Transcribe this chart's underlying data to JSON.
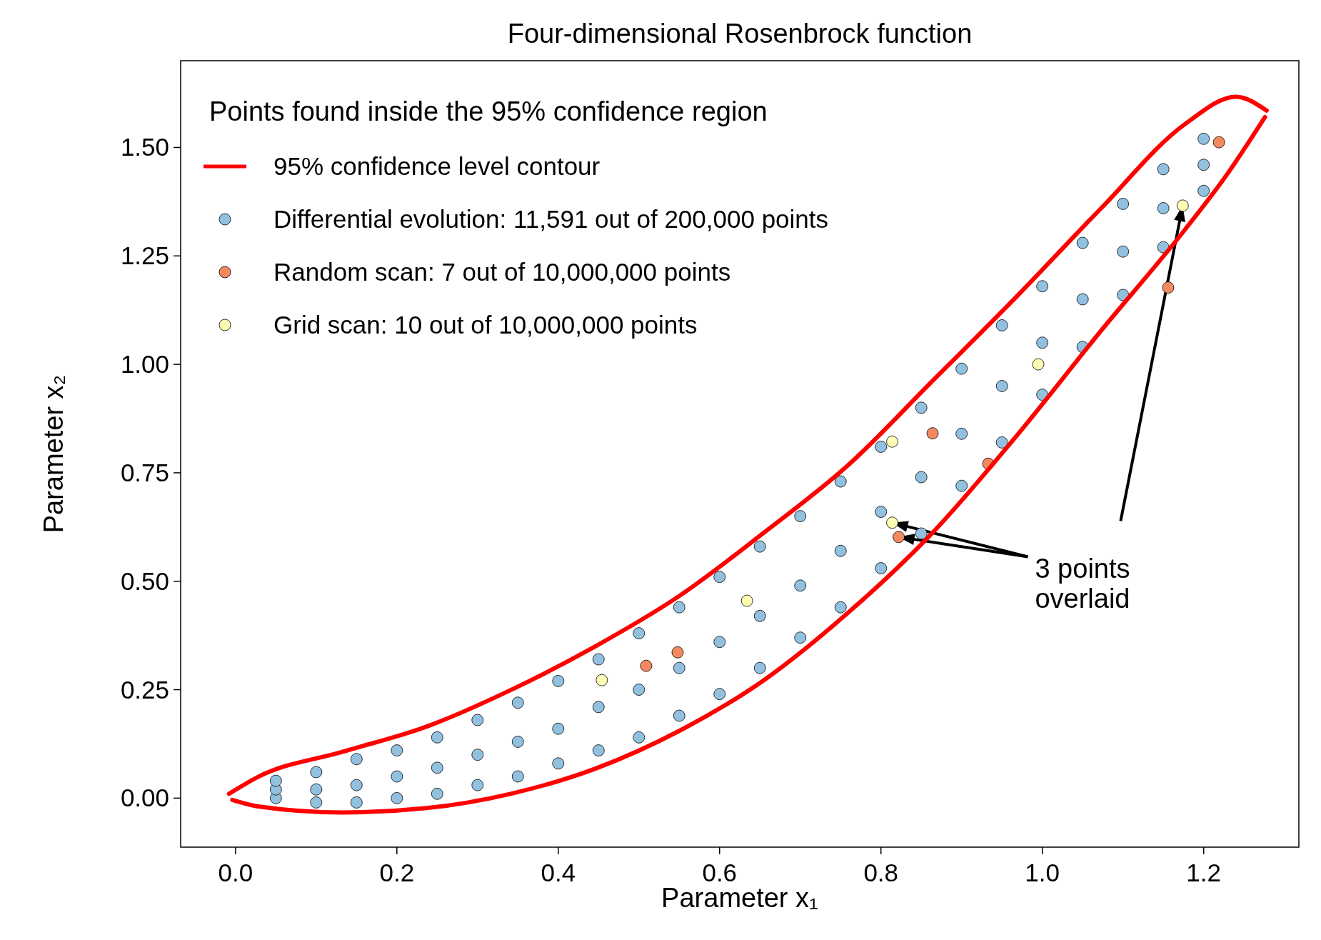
{
  "chart_data": {
    "type": "scatter",
    "title": "Four-dimensional Rosenbrock function",
    "xlabel": "Parameter x₁",
    "ylabel": "Parameter x₂",
    "legend_title": "Points found inside the 95% confidence region",
    "legend": "top left",
    "marker": "circle",
    "grid": false,
    "xlim": [
      -0.068,
      1.318
    ],
    "xticks": [
      {
        "value": 0,
        "label": "0.0"
      },
      {
        "value": 0.2,
        "label": "0.2"
      },
      {
        "value": 0.4,
        "label": "0.4"
      },
      {
        "value": 0.6,
        "label": "0.6"
      },
      {
        "value": 0.8,
        "label": "0.8"
      },
      {
        "value": 1,
        "label": "1.0"
      },
      {
        "value": 1.2,
        "label": "1.2"
      }
    ],
    "ylim": [
      -0.113,
      1.7
    ],
    "yticks": [
      {
        "value": 0,
        "label": "0.00"
      },
      {
        "value": 0.25,
        "label": "0.25"
      },
      {
        "value": 0.5,
        "label": "0.50"
      },
      {
        "value": 0.75,
        "label": "0.75"
      },
      {
        "value": 1,
        "label": "1.00"
      },
      {
        "value": 1.25,
        "label": "1.25"
      },
      {
        "value": 1.5,
        "label": "1.50"
      }
    ],
    "series": [
      {
        "name": "Differential evolution: 11,591 out of 200,000 points",
        "color": "#92c1e0",
        "x": [
          0.05,
          0.05,
          0.05,
          0.1,
          0.1,
          0.1,
          0.15,
          0.15,
          0.15,
          0.2,
          0.2,
          0.2,
          0.25,
          0.25,
          0.25,
          0.3,
          0.3,
          0.3,
          0.35,
          0.35,
          0.35,
          0.4,
          0.4,
          0.4,
          0.45,
          0.45,
          0.45,
          0.5,
          0.5,
          0.5,
          0.55,
          0.55,
          0.55,
          0.6,
          0.6,
          0.6,
          0.65,
          0.65,
          0.65,
          0.7,
          0.7,
          0.7,
          0.75,
          0.75,
          0.75,
          0.8,
          0.8,
          0.8,
          0.85,
          0.85,
          0.85,
          0.9,
          0.9,
          0.9,
          0.95,
          0.95,
          0.95,
          1,
          1,
          1,
          1.05,
          1.05,
          1.05,
          1.1,
          1.1,
          1.1,
          1.15,
          1.15,
          1.15,
          1.2,
          1.2,
          1.2
        ],
        "values": [
          0,
          0.02,
          0.04,
          -0.01,
          0.02,
          0.06,
          -0.01,
          0.03,
          0.09,
          0,
          0.05,
          0.11,
          0.01,
          0.07,
          0.14,
          0.03,
          0.1,
          0.18,
          0.05,
          0.13,
          0.22,
          0.08,
          0.16,
          0.27,
          0.11,
          0.21,
          0.32,
          0.14,
          0.25,
          0.38,
          0.19,
          0.3,
          0.44,
          0.24,
          0.36,
          0.51,
          0.3,
          0.42,
          0.58,
          0.37,
          0.49,
          0.65,
          0.44,
          0.57,
          0.73,
          0.53,
          0.66,
          0.81,
          0.61,
          0.74,
          0.9,
          0.72,
          0.84,
          0.99,
          0.82,
          0.95,
          1.09,
          0.93,
          1.05,
          1.18,
          1.04,
          1.15,
          1.28,
          1.16,
          1.26,
          1.37,
          1.27,
          1.36,
          1.45,
          1.4,
          1.46,
          1.52
        ]
      },
      {
        "name": "95% confidence level contour",
        "type": "line",
        "marker": "none",
        "color": "#ff0000",
        "x": [
          -0.008,
          0.028,
          0.133,
          0.237,
          0.341,
          0.446,
          0.55,
          0.655,
          0.759,
          0.864,
          0.968,
          1.073,
          1.177,
          1.24,
          1.278
        ],
        "values": [
          0.01,
          0.049,
          0.107,
          0.165,
          0.249,
          0.35,
          0.466,
          0.612,
          0.767,
          0.962,
          1.156,
          1.36,
          1.554,
          1.617,
          1.585
        ]
      },
      {
        "type": "line",
        "marker": "none",
        "color": "#ff0000",
        "x": [
          -0.004,
          0.028,
          0.133,
          0.237,
          0.341,
          0.446,
          0.55,
          0.655,
          0.759,
          0.864,
          0.968,
          1.073,
          1.177,
          1.229,
          1.276
        ],
        "values": [
          -0.004,
          -0.019,
          -0.033,
          -0.023,
          0.01,
          0.068,
          0.155,
          0.272,
          0.427,
          0.612,
          0.835,
          1.078,
          1.311,
          1.438,
          1.57
        ]
      },
      {
        "name": "Random scan: 7 out of 10,000,000 points",
        "color": "#f4895f",
        "x": [
          1.219,
          1.156,
          0.864,
          0.933,
          0.822,
          0.509,
          0.548
        ],
        "values": [
          1.512,
          1.177,
          0.841,
          0.771,
          0.602,
          0.305,
          0.336
        ]
      },
      {
        "name": "Grid scan: 10 out of 10,000,000 points",
        "color": "#fdfdb4",
        "x": [
          1.174,
          0.995,
          0.814,
          0.814,
          0.634,
          0.454
        ],
        "values": [
          1.366,
          1.0,
          0.822,
          0.635,
          0.455,
          0.272
        ]
      }
    ],
    "annotations": [
      "3 points overlaid"
    ]
  }
}
